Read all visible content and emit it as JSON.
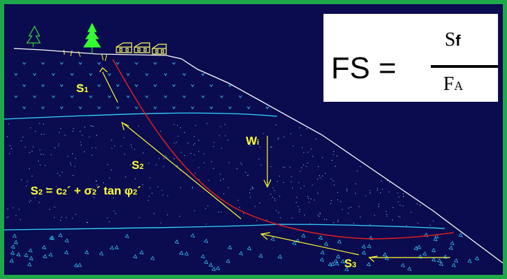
{
  "colors": {
    "frame": "#1fa84a",
    "background": "#0b0b4f",
    "ground_surface": "#ffffff",
    "layer_boundary": "#33d6ff",
    "slip_surface": "#e0201e",
    "force_arrows": "#ffff33",
    "labels": "#ffff33",
    "trees": "#33ff33",
    "houses": "#ffff66",
    "formula_box": "#ffffff"
  },
  "icons": [
    "pine-tree-icon",
    "house-icon"
  ],
  "labels": {
    "s1_base": "S",
    "s1_sub": "1",
    "s2_base": "S",
    "s2_sub": "2",
    "s3_base": "S",
    "s3_sub": "3",
    "wi_base": "W",
    "wi_sub": "i",
    "eq_s": "S",
    "eq_sub_2a": "2",
    "eq_eq_c": " = c",
    "eq_sub_2b": "2",
    "eq_plus_sigma": "´ + σ",
    "eq_sub_2c": "2",
    "eq_tan_phi": "´ tan φ",
    "eq_sub_2d": "2",
    "eq_prime": "´"
  },
  "formula": {
    "lhs": "FS =",
    "num_base": "S",
    "num_sub": "f",
    "den_base": "F",
    "den_sub": "A"
  }
}
